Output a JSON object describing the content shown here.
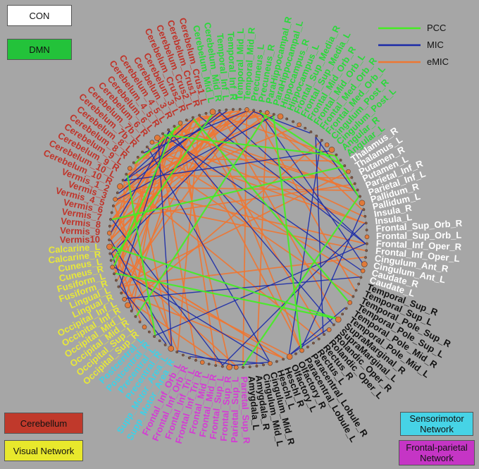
{
  "legend_boxes": {
    "con": {
      "label": "CON",
      "color": "#ffffff"
    },
    "dmn": {
      "label": "DMN",
      "color": "#23c23a"
    },
    "cerebellum": {
      "label": "Cerebellum",
      "color": "#c0392b"
    },
    "visual": {
      "label": "Visual Network",
      "color": "#e8e82c"
    },
    "sensorimotor": {
      "label": "Sensorimotor\nNetwork",
      "color": "#46d3e6"
    },
    "frontoparietal": {
      "label": "Frontal-parietal\nNetwork",
      "color": "#c535c5"
    }
  },
  "edge_legend": [
    {
      "label": "PCC",
      "color": "#44ee22"
    },
    {
      "label": "MIC",
      "color": "#1a2aa8"
    },
    {
      "label": "eMIC",
      "color": "#ee7733"
    }
  ],
  "network_colors": {
    "dmn": "#2bd93b",
    "subcortical": "#ffffff",
    "temporal": "#111111",
    "frontoparietal": "#d43cd4",
    "sensorimotor": "#3fd0e6",
    "visual": "#e8e838",
    "cerebellum": "#c0342a"
  },
  "regions": [
    {
      "label": "Precuneus_R",
      "net": "dmn"
    },
    {
      "label": "ParaHippocampal_R",
      "net": "dmn"
    },
    {
      "label": "ParaHippocampal_L",
      "net": "dmn"
    },
    {
      "label": "Hippocampus_R",
      "net": "dmn"
    },
    {
      "label": "Hippocampus_L",
      "net": "dmn"
    },
    {
      "label": "Frontal_Sup_Media_R",
      "net": "dmn"
    },
    {
      "label": "Frontal_Sup_Media_L",
      "net": "dmn"
    },
    {
      "label": "Frontal_Mid_Orb_R",
      "net": "dmn"
    },
    {
      "label": "Frontal_Mid_Orb_L",
      "net": "dmn"
    },
    {
      "label": "Frontal_Med_Orb_R",
      "net": "dmn"
    },
    {
      "label": "Frontal_Med_Orb_L",
      "net": "dmn"
    },
    {
      "label": "Cingulum_Post_R",
      "net": "dmn"
    },
    {
      "label": "Cingulum_Post_L",
      "net": "dmn"
    },
    {
      "label": "Angular_R",
      "net": "dmn"
    },
    {
      "label": "Angular_L",
      "net": "dmn"
    },
    {
      "label": "Thalamus_R",
      "net": "subcortical"
    },
    {
      "label": "Thalamus_L",
      "net": "subcortical"
    },
    {
      "label": "Putamen_R",
      "net": "subcortical"
    },
    {
      "label": "Putamen_L",
      "net": "subcortical"
    },
    {
      "label": "Parietal_Inf_R",
      "net": "subcortical"
    },
    {
      "label": "Parietal_Inf_L",
      "net": "subcortical"
    },
    {
      "label": "Pallidum_R",
      "net": "subcortical"
    },
    {
      "label": "Pallidum_L",
      "net": "subcortical"
    },
    {
      "label": "Insula_R",
      "net": "subcortical"
    },
    {
      "label": "Insula_L",
      "net": "subcortical"
    },
    {
      "label": "Frontal_Sup_Orb_R",
      "net": "subcortical"
    },
    {
      "label": "Frontal_Sup_Orb_L",
      "net": "subcortical"
    },
    {
      "label": "Frontal_Inf_Oper_R",
      "net": "subcortical"
    },
    {
      "label": "Frontal_Inf_Oper_L",
      "net": "subcortical"
    },
    {
      "label": "Cingulum_Ant_R",
      "net": "subcortical"
    },
    {
      "label": "Cingulum_Ant_L",
      "net": "subcortical"
    },
    {
      "label": "Caudate_R",
      "net": "subcortical"
    },
    {
      "label": "Caudate_L",
      "net": "subcortical"
    },
    {
      "label": "Temporal_Sup_R",
      "net": "temporal"
    },
    {
      "label": "Temporal_Sup_L",
      "net": "temporal"
    },
    {
      "label": "Temporal_Pole_Sup_R",
      "net": "temporal"
    },
    {
      "label": "Temporal_Pole_Sup_L",
      "net": "temporal"
    },
    {
      "label": "Temporal_Pole_Mid_R",
      "net": "temporal"
    },
    {
      "label": "Temporal_Pole_Mid_L",
      "net": "temporal"
    },
    {
      "label": "SupraMarginal_R",
      "net": "temporal"
    },
    {
      "label": "SupraMarginal_L",
      "net": "temporal"
    },
    {
      "label": "Rolandic_Oper_R",
      "net": "temporal"
    },
    {
      "label": "Rolandic_Oper_L",
      "net": "temporal"
    },
    {
      "label": "Rectus_R",
      "net": "temporal"
    },
    {
      "label": "Rectus_L",
      "net": "temporal"
    },
    {
      "label": "Paracentral_Lobule_R",
      "net": "temporal"
    },
    {
      "label": "Paracentral_Lobule_L",
      "net": "temporal"
    },
    {
      "label": "Olfactory_R",
      "net": "temporal"
    },
    {
      "label": "Olfactory_L",
      "net": "temporal"
    },
    {
      "label": "Heschl_R",
      "net": "temporal"
    },
    {
      "label": "Heschl_L",
      "net": "temporal"
    },
    {
      "label": "Cingulum_Mid_R",
      "net": "temporal"
    },
    {
      "label": "Cingulum_Mid_L",
      "net": "temporal"
    },
    {
      "label": "Amygdala_R",
      "net": "temporal"
    },
    {
      "label": "Amygdala_L",
      "net": "temporal"
    },
    {
      "label": "Parietal_Sup_R",
      "net": "frontoparietal"
    },
    {
      "label": "Parietal_Sup_L",
      "net": "frontoparietal"
    },
    {
      "label": "Frontal_Sup_R",
      "net": "frontoparietal"
    },
    {
      "label": "Frontal_Sup_L",
      "net": "frontoparietal"
    },
    {
      "label": "Frontal_Mid_R",
      "net": "frontoparietal"
    },
    {
      "label": "Frontal_Mid_L",
      "net": "frontoparietal"
    },
    {
      "label": "Frontal_Inf_Tri_R",
      "net": "frontoparietal"
    },
    {
      "label": "Frontal_Inf_Tri_L",
      "net": "frontoparietal"
    },
    {
      "label": "Frontal_Inf_Orb_R",
      "net": "frontoparietal"
    },
    {
      "label": "Frontal_Inf_Orb_L",
      "net": "frontoparietal"
    },
    {
      "label": "Supp_Motor_Area_R",
      "net": "sensorimotor"
    },
    {
      "label": "Supp_Motor_Area_L",
      "net": "sensorimotor"
    },
    {
      "label": "Precentral_R",
      "net": "sensorimotor"
    },
    {
      "label": "Precentral_L",
      "net": "sensorimotor"
    },
    {
      "label": "Postcentral_R",
      "net": "sensorimotor"
    },
    {
      "label": "Postcentral_L",
      "net": "sensorimotor"
    },
    {
      "label": "Occipital_Sup_R",
      "net": "visual"
    },
    {
      "label": "Occipital_Sup_L",
      "net": "visual"
    },
    {
      "label": "Occipital_Mid_R",
      "net": "visual"
    },
    {
      "label": "Occipital_Mid_L",
      "net": "visual"
    },
    {
      "label": "Occipital_Inf_R",
      "net": "visual"
    },
    {
      "label": "Occipital_Inf_L",
      "net": "visual"
    },
    {
      "label": "Lingual_R",
      "net": "visual"
    },
    {
      "label": "Lingual_L",
      "net": "visual"
    },
    {
      "label": "Fusiform_R",
      "net": "visual"
    },
    {
      "label": "Fusiform_L",
      "net": "visual"
    },
    {
      "label": "Cuneus_R",
      "net": "visual"
    },
    {
      "label": "Cuneus_L",
      "net": "visual"
    },
    {
      "label": "Calcarine_R",
      "net": "visual"
    },
    {
      "label": "Calcarine_L",
      "net": "visual"
    },
    {
      "label": "Vermis10",
      "net": "cerebellum"
    },
    {
      "label": "Vermis_9",
      "net": "cerebellum"
    },
    {
      "label": "Vermis_8",
      "net": "cerebellum"
    },
    {
      "label": "Vermis_7",
      "net": "cerebellum"
    },
    {
      "label": "Vermis_6",
      "net": "cerebellum"
    },
    {
      "label": "Vermis_4_5",
      "net": "cerebellum"
    },
    {
      "label": "Vermis_3",
      "net": "cerebellum"
    },
    {
      "label": "Vermis_1_2",
      "net": "cerebellum"
    },
    {
      "label": "Cerebelum_10_R",
      "net": "cerebellum"
    },
    {
      "label": "Cerebelum_10_L",
      "net": "cerebellum"
    },
    {
      "label": "Cerebelum_9_R",
      "net": "cerebellum"
    },
    {
      "label": "Cerebelum_9_L",
      "net": "cerebellum"
    },
    {
      "label": "Cerebelum_8_R",
      "net": "cerebellum"
    },
    {
      "label": "Cerebelum_8_L",
      "net": "cerebellum"
    },
    {
      "label": "Cerebelum_7b_R",
      "net": "cerebellum"
    },
    {
      "label": "Cerebelum_7b_L",
      "net": "cerebellum"
    },
    {
      "label": "Cerebelum_6_R",
      "net": "cerebellum"
    },
    {
      "label": "Cerebelum_6_L",
      "net": "cerebellum"
    },
    {
      "label": "Cerebelum_4_5_R",
      "net": "cerebellum"
    },
    {
      "label": "Cerebelum_4_5_L",
      "net": "cerebellum"
    },
    {
      "label": "Cerebelum_3_R",
      "net": "cerebellum"
    },
    {
      "label": "Cerebelum_3_L",
      "net": "cerebellum"
    },
    {
      "label": "Cerebelum_Crus2_R",
      "net": "cerebellum"
    },
    {
      "label": "Cerebelum_Crus2_L",
      "net": "cerebellum"
    },
    {
      "label": "Cerebelum_Crus1_R",
      "net": "cerebellum"
    },
    {
      "label": "Cerebelum_Crus1_L",
      "net": "cerebellum"
    },
    {
      "label": "Cerebelum_Mid_L",
      "net": "dmn"
    },
    {
      "label": "Cerebelum_Mid_R",
      "net": "dmn"
    },
    {
      "label": "Temporal_Inf_L",
      "net": "dmn"
    },
    {
      "label": "Temporal_Inf_R",
      "net": "dmn"
    },
    {
      "label": "Temporal_Mid_L",
      "net": "dmn"
    },
    {
      "label": "Temporal_Mid_R",
      "net": "dmn"
    },
    {
      "label": "Precuneus_L",
      "net": "dmn"
    }
  ]
}
